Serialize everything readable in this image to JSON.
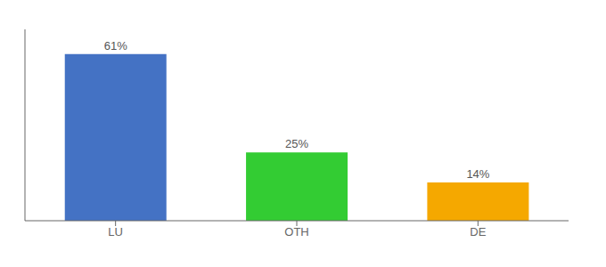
{
  "chart_data": {
    "type": "bar",
    "categories": [
      "LU",
      "OTH",
      "DE"
    ],
    "values": [
      61,
      25,
      14
    ],
    "value_labels": [
      "61%",
      "25%",
      "14%"
    ],
    "colors": [
      "#4472c4",
      "#33cc33",
      "#f5a800"
    ],
    "ylim": [
      0,
      70
    ],
    "grid": false,
    "data_labels": true,
    "tick_labels": "x"
  }
}
